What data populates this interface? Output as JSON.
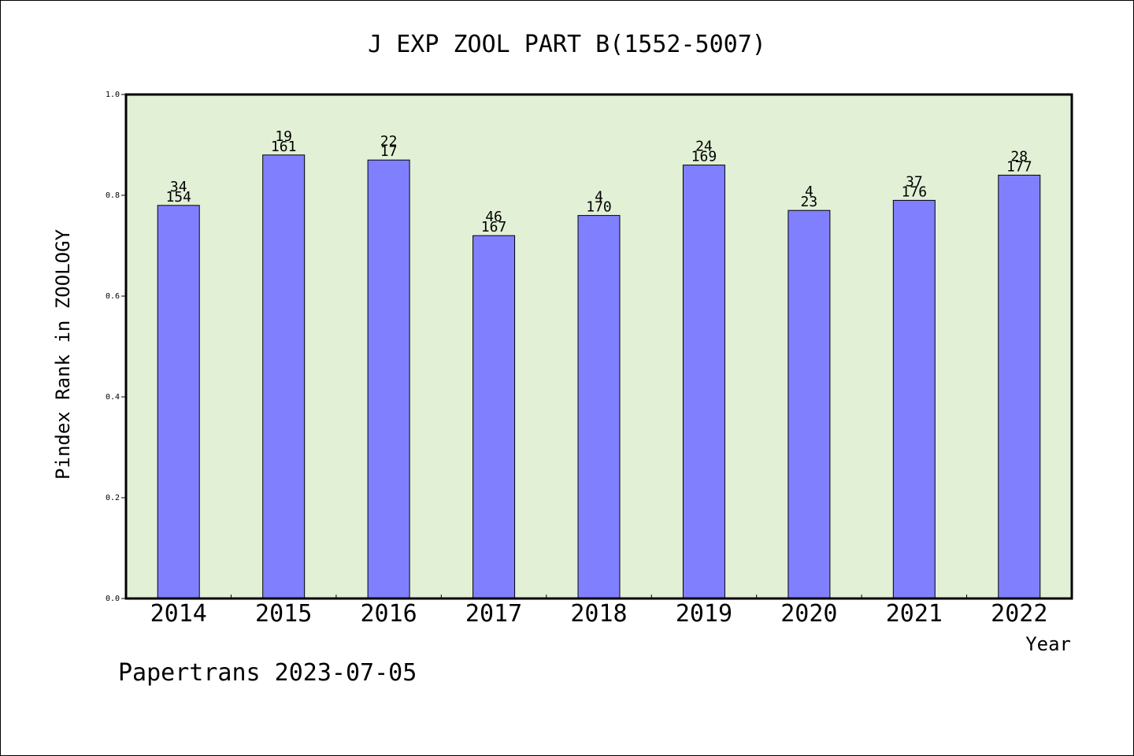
{
  "chart_data": {
    "type": "bar",
    "title": "J EXP ZOOL PART B(1552-5007)",
    "xlabel": "Year",
    "ylabel": "Pindex Rank in ZOOLOGY",
    "footer": "Papertrans 2023-07-05",
    "categories": [
      "2014",
      "2015",
      "2016",
      "2017",
      "2018",
      "2019",
      "2020",
      "2021",
      "2022"
    ],
    "values": [
      0.78,
      0.88,
      0.87,
      0.72,
      0.76,
      0.86,
      0.77,
      0.79,
      0.84
    ],
    "label_top": [
      "34",
      "19",
      "22",
      "46",
      "4",
      "24",
      "4",
      "37",
      "28"
    ],
    "label_bottom": [
      "154",
      "161",
      "17",
      "167",
      "170",
      "169",
      "23",
      "176",
      "177"
    ],
    "ylim": [
      0,
      1.0
    ],
    "yticks": [
      "0.0",
      "0.2",
      "0.4",
      "0.6",
      "0.8",
      "1.0"
    ],
    "grid": false,
    "colors": {
      "bar": "#8080ff",
      "plot_background": "#e2f0d6",
      "axis": "#000000"
    }
  }
}
